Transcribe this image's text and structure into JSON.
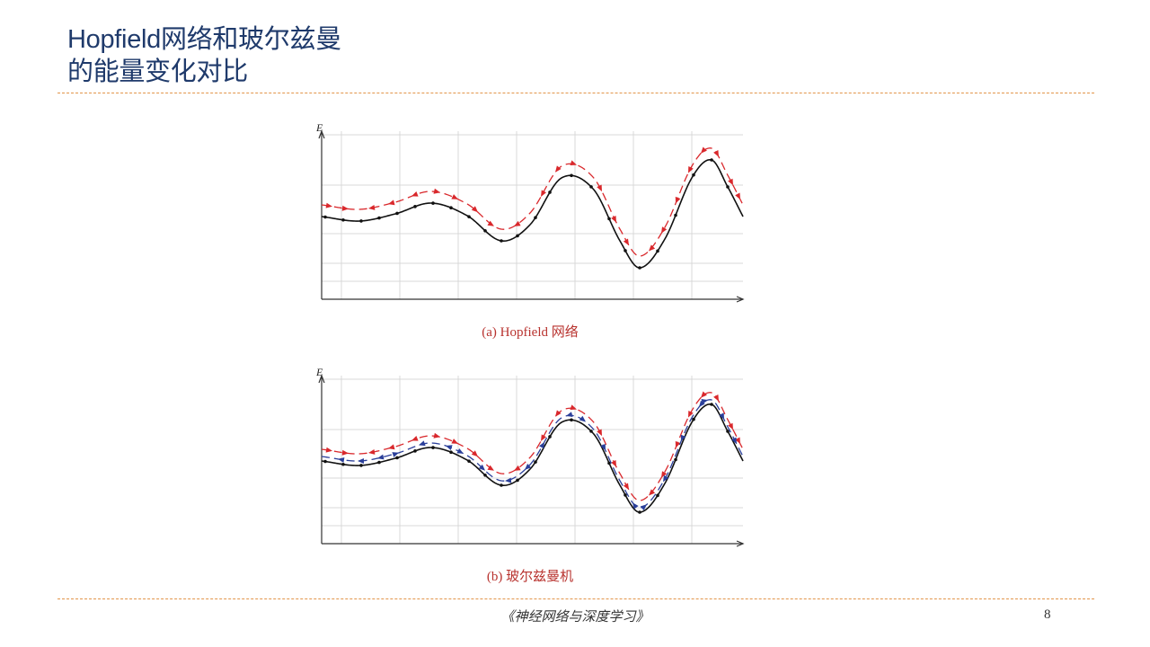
{
  "slide": {
    "title_line1": "Hopfield网络和玻尔兹曼",
    "title_line2": "的能量变化对比",
    "footer_text": "《神经网络与深度学习》",
    "page_number": "8"
  },
  "figures": [
    {
      "id": "a",
      "caption": "(a) Hopfield 网络",
      "axis_label": "E",
      "show_blue": false
    },
    {
      "id": "b",
      "caption": "(b) 玻尔兹曼机",
      "axis_label": "E",
      "show_blue": true
    }
  ],
  "colors": {
    "title": "#1f3a6b",
    "rule": "#e2954a",
    "curve": "#111111",
    "red_arrows": "#d9282c",
    "blue_arrows": "#2a3f9a",
    "grid": "#d9d9d9",
    "caption": "#b8322e"
  }
}
